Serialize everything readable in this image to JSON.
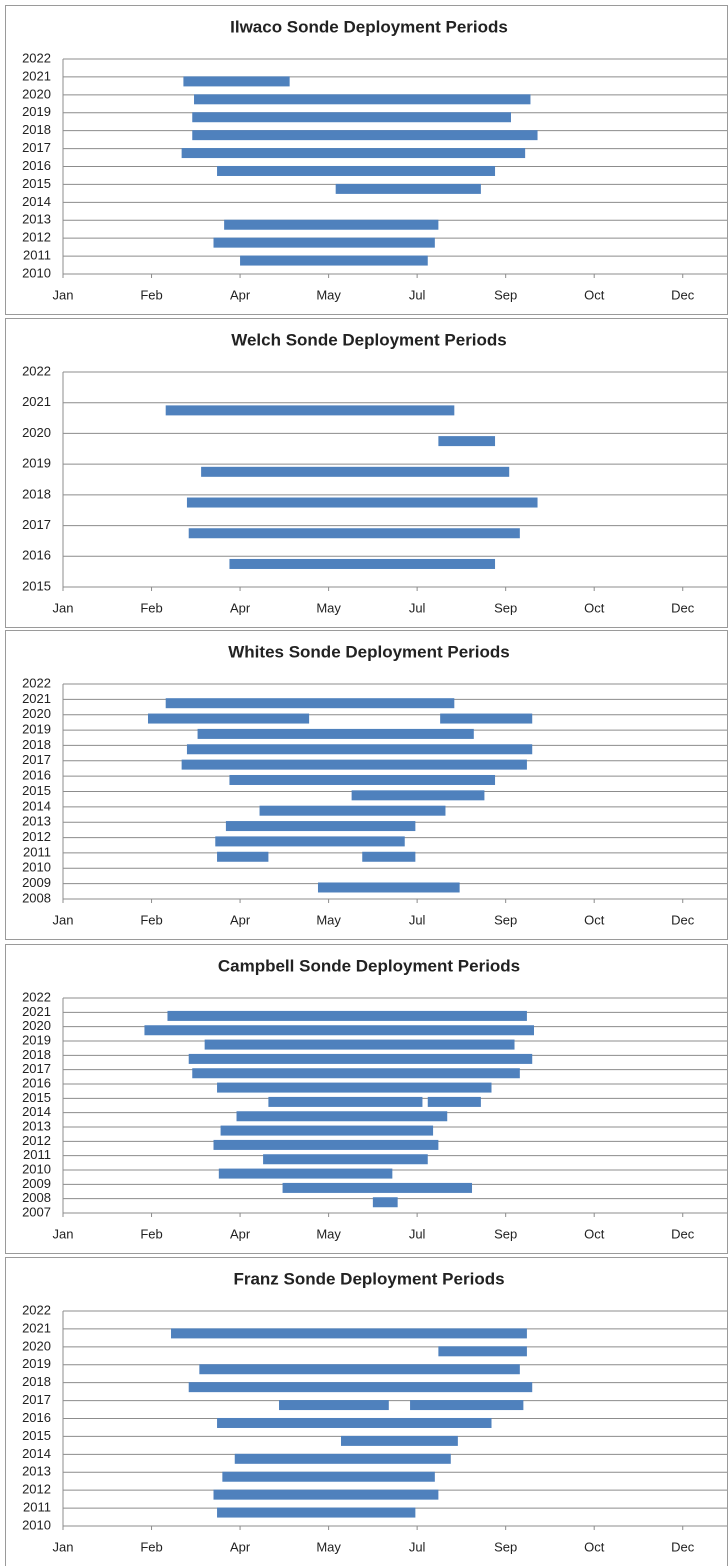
{
  "chart_data": [
    {
      "type": "range-bar",
      "title": "Ilwaco Sonde Deployment Periods",
      "color": "#4f81bd",
      "grid": true,
      "xlim": [
        0,
        375
      ],
      "xticks": [
        {
          "value": 0,
          "label": "Jan"
        },
        {
          "value": 50,
          "label": "Feb"
        },
        {
          "value": 100,
          "label": "Apr"
        },
        {
          "value": 150,
          "label": "May"
        },
        {
          "value": 200,
          "label": "Jul"
        },
        {
          "value": 250,
          "label": "Sep"
        },
        {
          "value": 300,
          "label": "Oct"
        },
        {
          "value": 350,
          "label": "Dec"
        }
      ],
      "ylim": [
        2010,
        2022
      ],
      "yticks": [
        2010,
        2011,
        2012,
        2013,
        2014,
        2015,
        2016,
        2017,
        2018,
        2019,
        2020,
        2021,
        2022
      ],
      "bars": [
        {
          "y": 2021,
          "start": 68,
          "end": 128
        },
        {
          "y": 2020,
          "start": 74,
          "end": 264
        },
        {
          "y": 2019,
          "start": 73,
          "end": 253
        },
        {
          "y": 2018,
          "start": 73,
          "end": 268
        },
        {
          "y": 2017,
          "start": 67,
          "end": 261
        },
        {
          "y": 2016,
          "start": 87,
          "end": 244
        },
        {
          "y": 2015,
          "start": 154,
          "end": 236
        },
        {
          "y": 2013,
          "start": 91,
          "end": 212
        },
        {
          "y": 2012,
          "start": 85,
          "end": 210
        },
        {
          "y": 2011,
          "start": 100,
          "end": 206
        }
      ]
    },
    {
      "type": "range-bar",
      "title": "Welch Sonde Deployment Periods",
      "color": "#4f81bd",
      "grid": true,
      "xlim": [
        0,
        375
      ],
      "xticks": [
        {
          "value": 0,
          "label": "Jan"
        },
        {
          "value": 50,
          "label": "Feb"
        },
        {
          "value": 100,
          "label": "Apr"
        },
        {
          "value": 150,
          "label": "May"
        },
        {
          "value": 200,
          "label": "Jul"
        },
        {
          "value": 250,
          "label": "Sep"
        },
        {
          "value": 300,
          "label": "Oct"
        },
        {
          "value": 350,
          "label": "Dec"
        }
      ],
      "ylim": [
        2015,
        2022
      ],
      "yticks": [
        2015,
        2016,
        2017,
        2018,
        2019,
        2020,
        2021,
        2022
      ],
      "bars": [
        {
          "y": 2021,
          "start": 58,
          "end": 221
        },
        {
          "y": 2020,
          "start": 212,
          "end": 244
        },
        {
          "y": 2019,
          "start": 78,
          "end": 252
        },
        {
          "y": 2018,
          "start": 70,
          "end": 268
        },
        {
          "y": 2017,
          "start": 71,
          "end": 258
        },
        {
          "y": 2016,
          "start": 94,
          "end": 244
        }
      ]
    },
    {
      "type": "range-bar",
      "title": "Whites Sonde Deployment Periods",
      "color": "#4f81bd",
      "grid": true,
      "xlim": [
        0,
        375
      ],
      "xticks": [
        {
          "value": 0,
          "label": "Jan"
        },
        {
          "value": 50,
          "label": "Feb"
        },
        {
          "value": 100,
          "label": "Apr"
        },
        {
          "value": 150,
          "label": "May"
        },
        {
          "value": 200,
          "label": "Jul"
        },
        {
          "value": 250,
          "label": "Sep"
        },
        {
          "value": 300,
          "label": "Oct"
        },
        {
          "value": 350,
          "label": "Dec"
        }
      ],
      "ylim": [
        2008,
        2022
      ],
      "yticks": [
        2008,
        2009,
        2010,
        2011,
        2012,
        2013,
        2014,
        2015,
        2016,
        2017,
        2018,
        2019,
        2020,
        2021,
        2022
      ],
      "bars": [
        {
          "y": 2021,
          "start": 58,
          "end": 221
        },
        {
          "y": 2020,
          "start": 48,
          "end": 139
        },
        {
          "y": 2020,
          "start": 213,
          "end": 265
        },
        {
          "y": 2019,
          "start": 76,
          "end": 232
        },
        {
          "y": 2018,
          "start": 70,
          "end": 265
        },
        {
          "y": 2017,
          "start": 67,
          "end": 262
        },
        {
          "y": 2016,
          "start": 94,
          "end": 244
        },
        {
          "y": 2015,
          "start": 163,
          "end": 238
        },
        {
          "y": 2014,
          "start": 111,
          "end": 216
        },
        {
          "y": 2013,
          "start": 92,
          "end": 199
        },
        {
          "y": 2012,
          "start": 86,
          "end": 193
        },
        {
          "y": 2011,
          "start": 87,
          "end": 116
        },
        {
          "y": 2011,
          "start": 169,
          "end": 199
        },
        {
          "y": 2009,
          "start": 144,
          "end": 224
        }
      ]
    },
    {
      "type": "range-bar",
      "title": "Campbell Sonde Deployment Periods",
      "color": "#4f81bd",
      "grid": true,
      "xlim": [
        0,
        375
      ],
      "xticks": [
        {
          "value": 0,
          "label": "Jan"
        },
        {
          "value": 50,
          "label": "Feb"
        },
        {
          "value": 100,
          "label": "Apr"
        },
        {
          "value": 150,
          "label": "May"
        },
        {
          "value": 200,
          "label": "Jul"
        },
        {
          "value": 250,
          "label": "Sep"
        },
        {
          "value": 300,
          "label": "Oct"
        },
        {
          "value": 350,
          "label": "Dec"
        }
      ],
      "ylim": [
        2007,
        2022
      ],
      "yticks": [
        2007,
        2008,
        2009,
        2010,
        2011,
        2012,
        2013,
        2014,
        2015,
        2016,
        2017,
        2018,
        2019,
        2020,
        2021,
        2022
      ],
      "bars": [
        {
          "y": 2021,
          "start": 59,
          "end": 262
        },
        {
          "y": 2020,
          "start": 46,
          "end": 266
        },
        {
          "y": 2019,
          "start": 80,
          "end": 255
        },
        {
          "y": 2018,
          "start": 71,
          "end": 265
        },
        {
          "y": 2017,
          "start": 73,
          "end": 258
        },
        {
          "y": 2016,
          "start": 87,
          "end": 242
        },
        {
          "y": 2015,
          "start": 116,
          "end": 203
        },
        {
          "y": 2015,
          "start": 206,
          "end": 236
        },
        {
          "y": 2014,
          "start": 98,
          "end": 217
        },
        {
          "y": 2013,
          "start": 89,
          "end": 209
        },
        {
          "y": 2012,
          "start": 85,
          "end": 212
        },
        {
          "y": 2011,
          "start": 113,
          "end": 206
        },
        {
          "y": 2010,
          "start": 88,
          "end": 186
        },
        {
          "y": 2009,
          "start": 124,
          "end": 231
        },
        {
          "y": 2008,
          "start": 175,
          "end": 189
        }
      ]
    },
    {
      "type": "range-bar",
      "title": "Franz Sonde Deployment Periods",
      "color": "#4f81bd",
      "grid": true,
      "xlim": [
        0,
        375
      ],
      "xticks": [
        {
          "value": 0,
          "label": "Jan"
        },
        {
          "value": 50,
          "label": "Feb"
        },
        {
          "value": 100,
          "label": "Apr"
        },
        {
          "value": 150,
          "label": "May"
        },
        {
          "value": 200,
          "label": "Jul"
        },
        {
          "value": 250,
          "label": "Sep"
        },
        {
          "value": 300,
          "label": "Oct"
        },
        {
          "value": 350,
          "label": "Dec"
        }
      ],
      "ylim": [
        2010,
        2022
      ],
      "yticks": [
        2010,
        2011,
        2012,
        2013,
        2014,
        2015,
        2016,
        2017,
        2018,
        2019,
        2020,
        2021,
        2022
      ],
      "bars": [
        {
          "y": 2021,
          "start": 61,
          "end": 262
        },
        {
          "y": 2020,
          "start": 212,
          "end": 262
        },
        {
          "y": 2019,
          "start": 77,
          "end": 258
        },
        {
          "y": 2018,
          "start": 71,
          "end": 265
        },
        {
          "y": 2017,
          "start": 122,
          "end": 184
        },
        {
          "y": 2017,
          "start": 196,
          "end": 260
        },
        {
          "y": 2016,
          "start": 87,
          "end": 242
        },
        {
          "y": 2015,
          "start": 157,
          "end": 223
        },
        {
          "y": 2014,
          "start": 97,
          "end": 219
        },
        {
          "y": 2013,
          "start": 90,
          "end": 210
        },
        {
          "y": 2012,
          "start": 85,
          "end": 212
        },
        {
          "y": 2011,
          "start": 87,
          "end": 199
        }
      ]
    }
  ]
}
